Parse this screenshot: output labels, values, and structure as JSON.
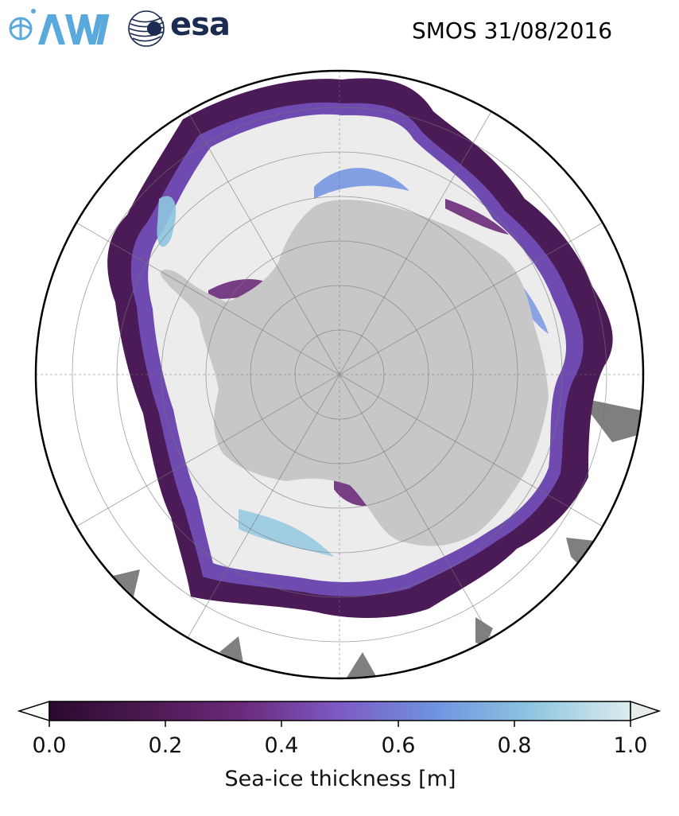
{
  "header": {
    "title": "SMOS 31/08/2016",
    "logos": [
      {
        "name": "awi-logo",
        "text": "AWI"
      },
      {
        "name": "esa-logo",
        "text": "esa"
      }
    ]
  },
  "colors": {
    "land": "#c7c7c7",
    "ice_thick": "#ececec",
    "ocean": "#ffffff",
    "no_data": "#7f7f7f",
    "awi_blue": "#5aa9dc",
    "esa_navy": "#1c2b52"
  },
  "colorbar": {
    "label": "Sea-ice thickness [m]",
    "ticks": [
      "0.0",
      "0.2",
      "0.4",
      "0.6",
      "0.8",
      "1.0"
    ],
    "min": 0.0,
    "max": 1.0,
    "extend": "both",
    "colormap": [
      "#2a0a2f",
      "#4b1850",
      "#6a2a7a",
      "#7d5ac4",
      "#6f92e0",
      "#8ec6e0",
      "#dcecee"
    ]
  },
  "map": {
    "projection": "south-polar-stereographic",
    "region": "Antarctica",
    "grid": true
  }
}
